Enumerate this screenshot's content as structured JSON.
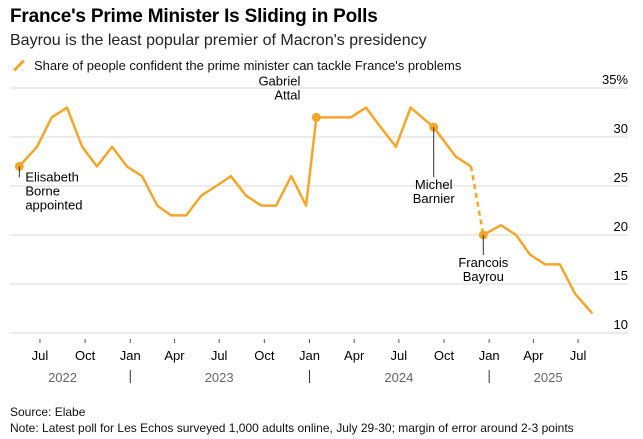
{
  "header": {
    "title": "France's Prime Minister Is Sliding in Polls",
    "subtitle": "Bayrou is the least popular premier of Macron's presidency",
    "legend_label": "Share of people confident the prime minister can tackle France's problems"
  },
  "footer": {
    "source": "Source: Elabe",
    "note": "Note: Latest poll for Les Echos surveyed 1,000 adults online, July 29-30; margin of error around 2-3 points"
  },
  "colors": {
    "line": "#f4a62a",
    "grid": "#d9d9d9",
    "text": "#000000"
  },
  "chart_data": {
    "type": "line",
    "title": "France's Prime Minister Is Sliding in Polls",
    "subtitle": "Bayrou is the least popular premier of Macron's presidency",
    "ylabel": "",
    "y_unit": "%",
    "ylim": [
      10,
      35
    ],
    "y_ticks": [
      {
        "value": 35,
        "label": "35%"
      },
      {
        "value": 30,
        "label": "30"
      },
      {
        "value": 25,
        "label": "25"
      },
      {
        "value": 20,
        "label": "20"
      },
      {
        "value": 15,
        "label": "15"
      },
      {
        "value": 10,
        "label": "10"
      }
    ],
    "xlim": [
      "2022-05-01",
      "2025-08-31"
    ],
    "x_month_ticks": [
      {
        "date": "2022-07-01",
        "label": "Jul"
      },
      {
        "date": "2022-10-01",
        "label": "Oct"
      },
      {
        "date": "2023-01-01",
        "label": "Jan"
      },
      {
        "date": "2023-04-01",
        "label": "Apr"
      },
      {
        "date": "2023-07-01",
        "label": "Jul"
      },
      {
        "date": "2023-10-01",
        "label": "Oct"
      },
      {
        "date": "2024-01-01",
        "label": "Jan"
      },
      {
        "date": "2024-04-01",
        "label": "Apr"
      },
      {
        "date": "2024-07-01",
        "label": "Jul"
      },
      {
        "date": "2024-10-01",
        "label": "Oct"
      },
      {
        "date": "2025-01-01",
        "label": "Jan"
      },
      {
        "date": "2025-04-01",
        "label": "Apr"
      },
      {
        "date": "2025-07-01",
        "label": "Jul"
      }
    ],
    "x_year_labels": [
      {
        "date": "2022-08-16",
        "label": "2022"
      },
      {
        "date": "2023-07-01",
        "label": "2023"
      },
      {
        "date": "2024-07-01",
        "label": "2024"
      },
      {
        "date": "2025-05-01",
        "label": "2025"
      }
    ],
    "year_boundaries": [
      "2023-01-01",
      "2024-01-01",
      "2025-01-01"
    ],
    "grid": "horizontal",
    "legend_position": "top-left",
    "series": [
      {
        "name": "Share of people confident the prime minister can tackle France's problems",
        "points": [
          {
            "date": "2022-05-20",
            "value": 27
          },
          {
            "date": "2022-06-25",
            "value": 29
          },
          {
            "date": "2022-07-25",
            "value": 32
          },
          {
            "date": "2022-08-25",
            "value": 33
          },
          {
            "date": "2022-09-25",
            "value": 29
          },
          {
            "date": "2022-10-25",
            "value": 27
          },
          {
            "date": "2022-11-25",
            "value": 29
          },
          {
            "date": "2022-12-25",
            "value": 27
          },
          {
            "date": "2023-01-25",
            "value": 26
          },
          {
            "date": "2023-02-25",
            "value": 23
          },
          {
            "date": "2023-03-25",
            "value": 22
          },
          {
            "date": "2023-04-25",
            "value": 22
          },
          {
            "date": "2023-05-25",
            "value": 24
          },
          {
            "date": "2023-06-25",
            "value": 25
          },
          {
            "date": "2023-07-25",
            "value": 26
          },
          {
            "date": "2023-08-25",
            "value": 24
          },
          {
            "date": "2023-09-25",
            "value": 23
          },
          {
            "date": "2023-10-25",
            "value": 23
          },
          {
            "date": "2023-11-25",
            "value": 26
          },
          {
            "date": "2023-12-25",
            "value": 23
          },
          {
            "date": "2024-01-15",
            "value": 32
          },
          {
            "date": "2024-02-25",
            "value": 32
          },
          {
            "date": "2024-03-25",
            "value": 32
          },
          {
            "date": "2024-04-25",
            "value": 33
          },
          {
            "date": "2024-05-25",
            "value": 31
          },
          {
            "date": "2024-06-25",
            "value": 29
          },
          {
            "date": "2024-07-25",
            "value": 33
          },
          {
            "date": "2024-09-10",
            "value": 31
          },
          {
            "date": "2024-10-25",
            "value": 28
          },
          {
            "date": "2024-11-25",
            "value": 27
          }
        ],
        "dashed_segment": [
          {
            "date": "2024-11-25",
            "value": 27
          },
          {
            "date": "2024-12-20",
            "value": 20
          }
        ],
        "points_after": [
          {
            "date": "2024-12-20",
            "value": 20
          },
          {
            "date": "2025-01-25",
            "value": 21
          },
          {
            "date": "2025-02-25",
            "value": 20
          },
          {
            "date": "2025-03-25",
            "value": 18
          },
          {
            "date": "2025-04-25",
            "value": 17
          },
          {
            "date": "2025-05-25",
            "value": 17
          },
          {
            "date": "2025-06-25",
            "value": 14
          },
          {
            "date": "2025-07-30",
            "value": 12
          }
        ]
      }
    ],
    "annotations": [
      {
        "date": "2022-05-20",
        "value": 27,
        "text": [
          "Elisabeth",
          "Borne",
          "appointed"
        ],
        "placement": "below-right"
      },
      {
        "date": "2024-01-15",
        "value": 32,
        "text": [
          "Gabriel",
          "Attal"
        ],
        "placement": "above-left"
      },
      {
        "date": "2024-09-10",
        "value": 31,
        "text": [
          "Michel",
          "Barnier"
        ],
        "placement": "below"
      },
      {
        "date": "2024-12-20",
        "value": 20,
        "text": [
          "Francois",
          "Bayrou"
        ],
        "placement": "below"
      }
    ]
  }
}
